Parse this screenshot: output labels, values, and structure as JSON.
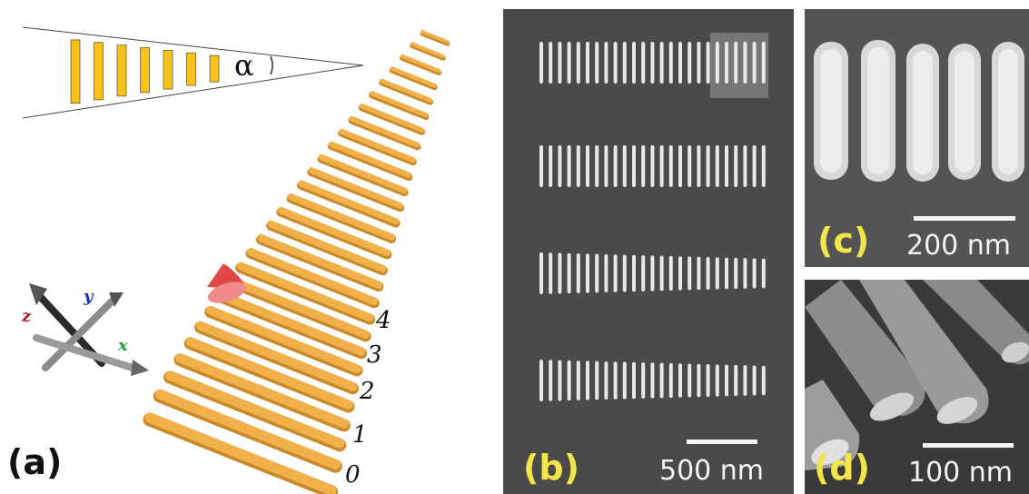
{
  "panels": {
    "a": {
      "label": "(a)",
      "angle_symbol": "α",
      "rod_indices": [
        "4",
        "3",
        "2",
        "1",
        "0"
      ],
      "axes": {
        "x": "x",
        "y": "y",
        "z": "z"
      },
      "colors": {
        "rod": "#f2b04a",
        "rod_dark": "#c98a2a",
        "cone": "#e04848",
        "schematic_bar": "#f7c21a"
      }
    },
    "b": {
      "label": "(b)",
      "scale_text": "500 nm",
      "rows": 4
    },
    "c": {
      "label": "(c)",
      "scale_text": "200 nm"
    },
    "d": {
      "label": "(d)",
      "scale_text": "100 nm"
    }
  }
}
